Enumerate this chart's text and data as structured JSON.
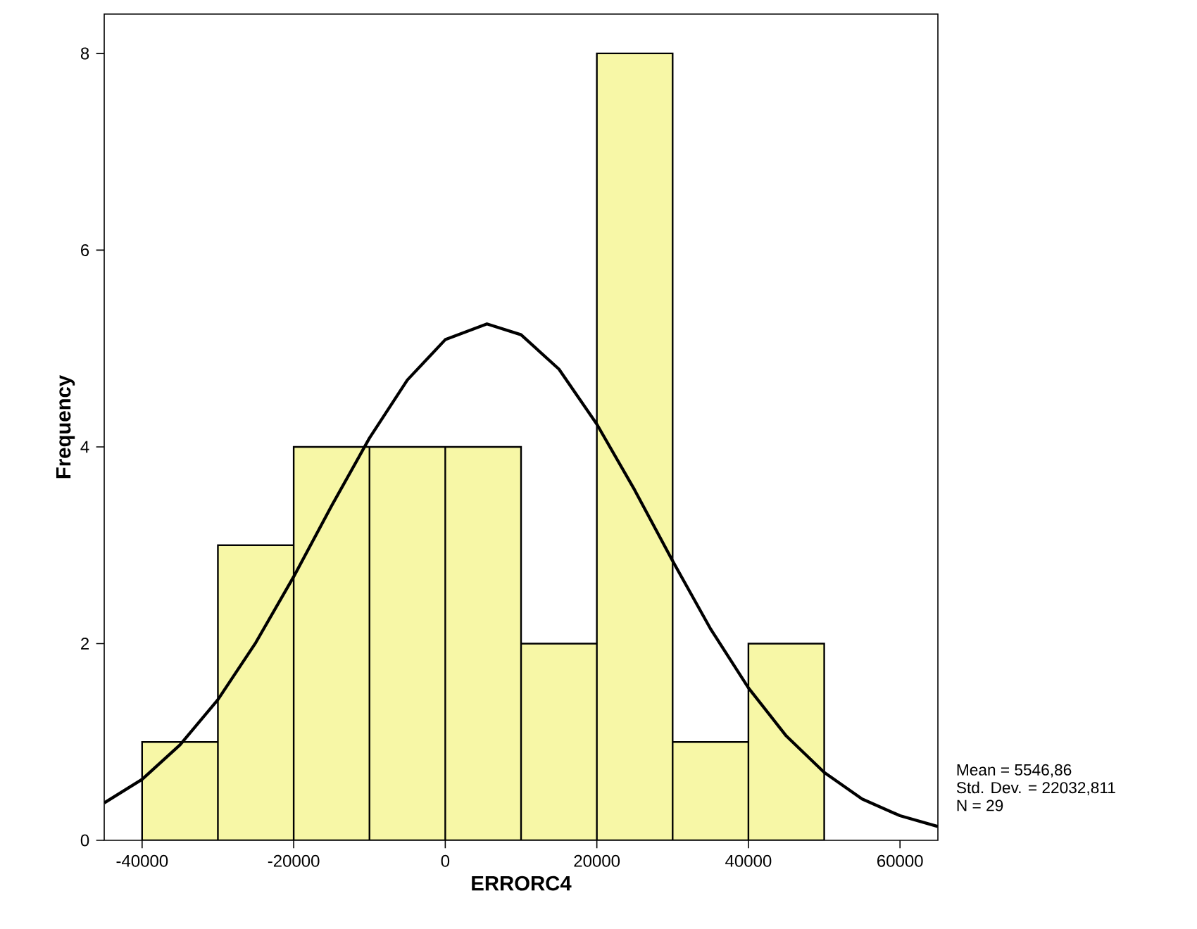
{
  "chart_data": {
    "type": "histogram",
    "xlabel": "ERRORC4",
    "ylabel": "Frequency",
    "bins": [
      -40000,
      -30000,
      -20000,
      -10000,
      0,
      10000,
      20000,
      30000,
      40000,
      50000
    ],
    "values": [
      1,
      3,
      4,
      4,
      4,
      2,
      8,
      1,
      2
    ],
    "color": "#f7f7a6",
    "series": [
      {
        "type": "line",
        "color": "#000000",
        "x": [
          -45000,
          -40000,
          -35000,
          -30000,
          -25000,
          -20000,
          -15000,
          -10000,
          -5000,
          0,
          5500,
          10000,
          15000,
          20000,
          25000,
          30000,
          35000,
          40000,
          45000,
          50000,
          55000,
          60000,
          65000
        ],
        "values": [
          0.38,
          0.62,
          0.97,
          1.43,
          2.01,
          2.68,
          3.4,
          4.09,
          4.68,
          5.09,
          5.25,
          5.14,
          4.79,
          4.23,
          3.56,
          2.84,
          2.15,
          1.55,
          1.06,
          0.69,
          0.42,
          0.25,
          0.14
        ]
      }
    ],
    "xlim": [
      -45000,
      65000
    ],
    "ylim": [
      0,
      8.4
    ],
    "xticks": [
      -40000,
      -20000,
      0,
      20000,
      40000,
      60000
    ],
    "yticks": [
      0,
      2,
      4,
      6,
      8
    ],
    "annotations": [
      "Mean = 5546,86",
      "Std. Dev. = 22032,811",
      "N = 29"
    ]
  }
}
